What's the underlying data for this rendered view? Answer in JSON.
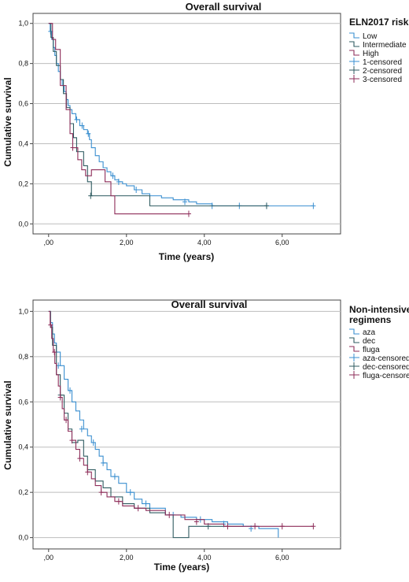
{
  "chart_data": [
    {
      "type": "line",
      "subtype": "kaplan-meier",
      "title": "Overall survival",
      "xlabel": "Time (years)",
      "ylabel": "Cumulative survival",
      "xlim": [
        -0.4,
        7.5
      ],
      "ylim": [
        -0.05,
        1.05
      ],
      "x_ticks": [
        0,
        2,
        4,
        6
      ],
      "x_tick_labels": [
        ",00",
        "2,00",
        "4,00",
        "6,00"
      ],
      "y_ticks": [
        0,
        0.2,
        0.4,
        0.6,
        0.8,
        1.0
      ],
      "y_tick_labels": [
        "0,0",
        "0,2",
        "0,4",
        "0,6",
        "0,8",
        "1,0"
      ],
      "grid": "horizontal",
      "legend": {
        "title": "ELN2017 risk",
        "placement": "right",
        "entries": [
          {
            "label": "Low",
            "kind": "step",
            "series": 0
          },
          {
            "label": "Intermediate",
            "kind": "step",
            "series": 1
          },
          {
            "label": "High",
            "kind": "step",
            "series": 2
          },
          {
            "label": "1-censored",
            "kind": "censor",
            "series": 0
          },
          {
            "label": "2-censored",
            "kind": "censor",
            "series": 1
          },
          {
            "label": "3-censored",
            "kind": "censor",
            "series": 2
          }
        ]
      },
      "series": [
        {
          "name": "Low",
          "color": "#3a8fd0",
          "x": [
            0,
            0.04,
            0.08,
            0.12,
            0.16,
            0.2,
            0.25,
            0.3,
            0.35,
            0.4,
            0.45,
            0.5,
            0.55,
            0.6,
            0.7,
            0.8,
            0.9,
            1.0,
            1.05,
            1.1,
            1.2,
            1.3,
            1.4,
            1.5,
            1.6,
            1.7,
            1.8,
            1.9,
            2.0,
            2.2,
            2.4,
            2.6,
            2.9,
            3.2,
            3.6,
            3.8,
            4.2,
            5.0,
            5.6,
            6.8
          ],
          "y": [
            1.0,
            0.96,
            0.92,
            0.88,
            0.84,
            0.8,
            0.76,
            0.72,
            0.69,
            0.66,
            0.62,
            0.59,
            0.57,
            0.55,
            0.52,
            0.49,
            0.47,
            0.45,
            0.42,
            0.38,
            0.34,
            0.31,
            0.28,
            0.26,
            0.24,
            0.22,
            0.21,
            0.2,
            0.19,
            0.17,
            0.15,
            0.14,
            0.13,
            0.12,
            0.11,
            0.1,
            0.09,
            0.09,
            0.09,
            0.09
          ],
          "censored_x": [
            0.05,
            0.72,
            0.86,
            1.02,
            1.65,
            1.8,
            2.25,
            3.5,
            4.2,
            4.9,
            5.6,
            6.8
          ],
          "censored_y": [
            0.96,
            0.52,
            0.49,
            0.45,
            0.24,
            0.21,
            0.17,
            0.11,
            0.09,
            0.09,
            0.09,
            0.09
          ]
        },
        {
          "name": "Intermediate",
          "color": "#2f5b60",
          "x": [
            0,
            0.06,
            0.12,
            0.2,
            0.3,
            0.38,
            0.46,
            0.55,
            0.64,
            0.72,
            0.9,
            1.0,
            1.1,
            2.6,
            5.6
          ],
          "y": [
            1.0,
            0.93,
            0.86,
            0.79,
            0.72,
            0.65,
            0.58,
            0.5,
            0.43,
            0.36,
            0.29,
            0.21,
            0.14,
            0.09,
            0.09
          ],
          "censored_x": [
            1.08,
            5.6
          ],
          "censored_y": [
            0.14,
            0.09
          ]
        },
        {
          "name": "High",
          "color": "#8e2e5a",
          "x": [
            0,
            0.1,
            0.18,
            0.3,
            0.45,
            0.55,
            0.62,
            0.75,
            0.85,
            0.95,
            1.1,
            1.45,
            1.6,
            1.7,
            3.6
          ],
          "y": [
            1.0,
            0.92,
            0.87,
            0.69,
            0.57,
            0.45,
            0.38,
            0.32,
            0.27,
            0.24,
            0.27,
            0.21,
            0.14,
            0.05,
            0.05
          ],
          "censored_x": [
            0.62,
            3.6
          ],
          "censored_y": [
            0.38,
            0.05
          ]
        }
      ]
    },
    {
      "type": "line",
      "subtype": "kaplan-meier",
      "title": "Overall survival",
      "xlabel": "Time (years)",
      "ylabel": "Cumulative survival",
      "xlim": [
        -0.4,
        7.5
      ],
      "ylim": [
        -0.05,
        1.05
      ],
      "x_ticks": [
        0,
        2,
        4,
        6
      ],
      "x_tick_labels": [
        ",00",
        "2,00",
        "4,00",
        "6,00"
      ],
      "y_ticks": [
        0,
        0.2,
        0.4,
        0.6,
        0.8,
        1.0
      ],
      "y_tick_labels": [
        "0,0",
        "0,2",
        "0,4",
        "0,6",
        "0,8",
        "1,0"
      ],
      "grid": "horizontal",
      "legend": {
        "title_lines": [
          "Non-intensive",
          "regimens"
        ],
        "placement": "right",
        "entries": [
          {
            "label": "aza",
            "kind": "step",
            "series": 0
          },
          {
            "label": "dec",
            "kind": "step",
            "series": 1
          },
          {
            "label": "fluga",
            "kind": "step",
            "series": 2
          },
          {
            "label": "aza-censored",
            "kind": "censor",
            "series": 0
          },
          {
            "label": "dec-censored",
            "kind": "censor",
            "series": 1
          },
          {
            "label": "fluga-censored",
            "kind": "censor",
            "series": 2
          }
        ]
      },
      "series": [
        {
          "name": "aza",
          "color": "#3a8fd0",
          "x": [
            0,
            0.05,
            0.1,
            0.15,
            0.2,
            0.3,
            0.4,
            0.5,
            0.6,
            0.7,
            0.8,
            0.9,
            1.0,
            1.1,
            1.2,
            1.3,
            1.4,
            1.5,
            1.6,
            1.8,
            2.0,
            2.2,
            2.4,
            2.6,
            3.0,
            3.4,
            3.8,
            4.2,
            4.6,
            5.0,
            5.4,
            5.9
          ],
          "y": [
            1.0,
            0.95,
            0.9,
            0.86,
            0.82,
            0.76,
            0.7,
            0.65,
            0.6,
            0.56,
            0.52,
            0.48,
            0.45,
            0.42,
            0.39,
            0.36,
            0.33,
            0.3,
            0.27,
            0.24,
            0.2,
            0.17,
            0.15,
            0.13,
            0.1,
            0.09,
            0.08,
            0.07,
            0.06,
            0.05,
            0.04,
            0.0
          ],
          "censored_x": [
            0.25,
            0.55,
            0.85,
            1.15,
            1.4,
            1.7,
            2.1,
            2.5,
            3.2,
            3.9,
            4.5,
            5.2
          ],
          "censored_y": [
            0.76,
            0.65,
            0.48,
            0.42,
            0.33,
            0.27,
            0.2,
            0.15,
            0.1,
            0.08,
            0.06,
            0.04
          ]
        },
        {
          "name": "dec",
          "color": "#2f5b60",
          "x": [
            0,
            0.05,
            0.1,
            0.2,
            0.3,
            0.4,
            0.5,
            0.6,
            0.75,
            0.9,
            1.0,
            1.2,
            1.4,
            1.6,
            1.9,
            2.2,
            2.6,
            3.0,
            3.2,
            3.6,
            4.0,
            5.0
          ],
          "y": [
            1.0,
            0.93,
            0.85,
            0.72,
            0.63,
            0.55,
            0.48,
            0.42,
            0.43,
            0.36,
            0.3,
            0.25,
            0.22,
            0.18,
            0.15,
            0.13,
            0.11,
            0.1,
            0.0,
            0.05,
            0.05,
            0.05
          ],
          "censored_x": [
            0.3,
            4.1
          ],
          "censored_y": [
            0.63,
            0.05
          ]
        },
        {
          "name": "fluga",
          "color": "#8e2e5a",
          "x": [
            0,
            0.04,
            0.08,
            0.12,
            0.16,
            0.2,
            0.25,
            0.3,
            0.35,
            0.4,
            0.5,
            0.6,
            0.7,
            0.8,
            0.9,
            1.0,
            1.1,
            1.2,
            1.35,
            1.5,
            1.7,
            1.9,
            2.2,
            2.5,
            3.0,
            3.5,
            4.0,
            4.5,
            5.0,
            6.8
          ],
          "y": [
            1.0,
            0.94,
            0.88,
            0.82,
            0.77,
            0.72,
            0.67,
            0.62,
            0.57,
            0.52,
            0.47,
            0.43,
            0.39,
            0.35,
            0.32,
            0.29,
            0.26,
            0.23,
            0.2,
            0.18,
            0.16,
            0.14,
            0.13,
            0.12,
            0.1,
            0.08,
            0.06,
            0.05,
            0.05,
            0.05
          ],
          "censored_x": [
            0.05,
            0.15,
            0.3,
            0.45,
            0.6,
            0.8,
            1.0,
            1.35,
            1.8,
            2.3,
            3.1,
            3.8,
            4.6,
            5.3,
            6.0,
            6.8
          ],
          "censored_y": [
            0.94,
            0.82,
            0.62,
            0.52,
            0.43,
            0.35,
            0.29,
            0.2,
            0.16,
            0.13,
            0.1,
            0.07,
            0.05,
            0.05,
            0.05,
            0.05
          ]
        }
      ]
    }
  ]
}
